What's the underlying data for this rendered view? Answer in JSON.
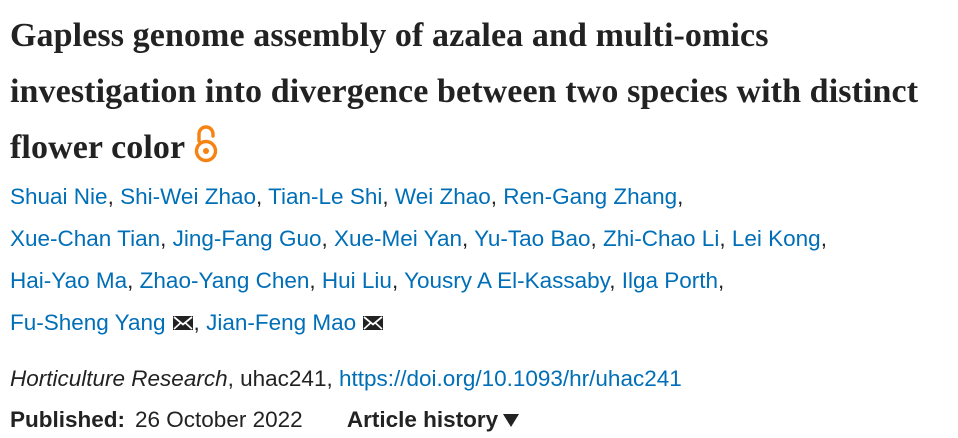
{
  "article": {
    "title": "Gapless genome assembly of azalea and multi-omics investigation into divergence between two species with distinct flower color",
    "open_access_icon": "open-access-lock-icon",
    "open_access_color": "#f68212",
    "link_color": "#006fb7",
    "authors": [
      "Shuai Nie",
      "Shi-Wei Zhao",
      "Tian-Le Shi",
      "Wei Zhao",
      "Ren-Gang Zhang",
      "Xue-Chan Tian",
      "Jing-Fang Guo",
      "Xue-Mei Yan",
      "Yu-Tao Bao",
      "Zhi-Chao Li",
      "Lei Kong",
      "Hai-Yao Ma",
      "Zhao-Yang Chen",
      "Hui Liu",
      "Yousry A El-Kassaby",
      "Ilga Porth",
      "Fu-Sheng Yang",
      "Jian-Feng Mao"
    ],
    "separator": ",",
    "mail_icon": "envelope-icon",
    "journal": "Horticulture Research",
    "article_id": "uhac241",
    "doi": "https://doi.org/10.1093/hr/uhac241",
    "published_label": "Published:",
    "published_date": "26 October 2022",
    "history_label": "Article history",
    "history_icon": "triangle-down-icon"
  }
}
